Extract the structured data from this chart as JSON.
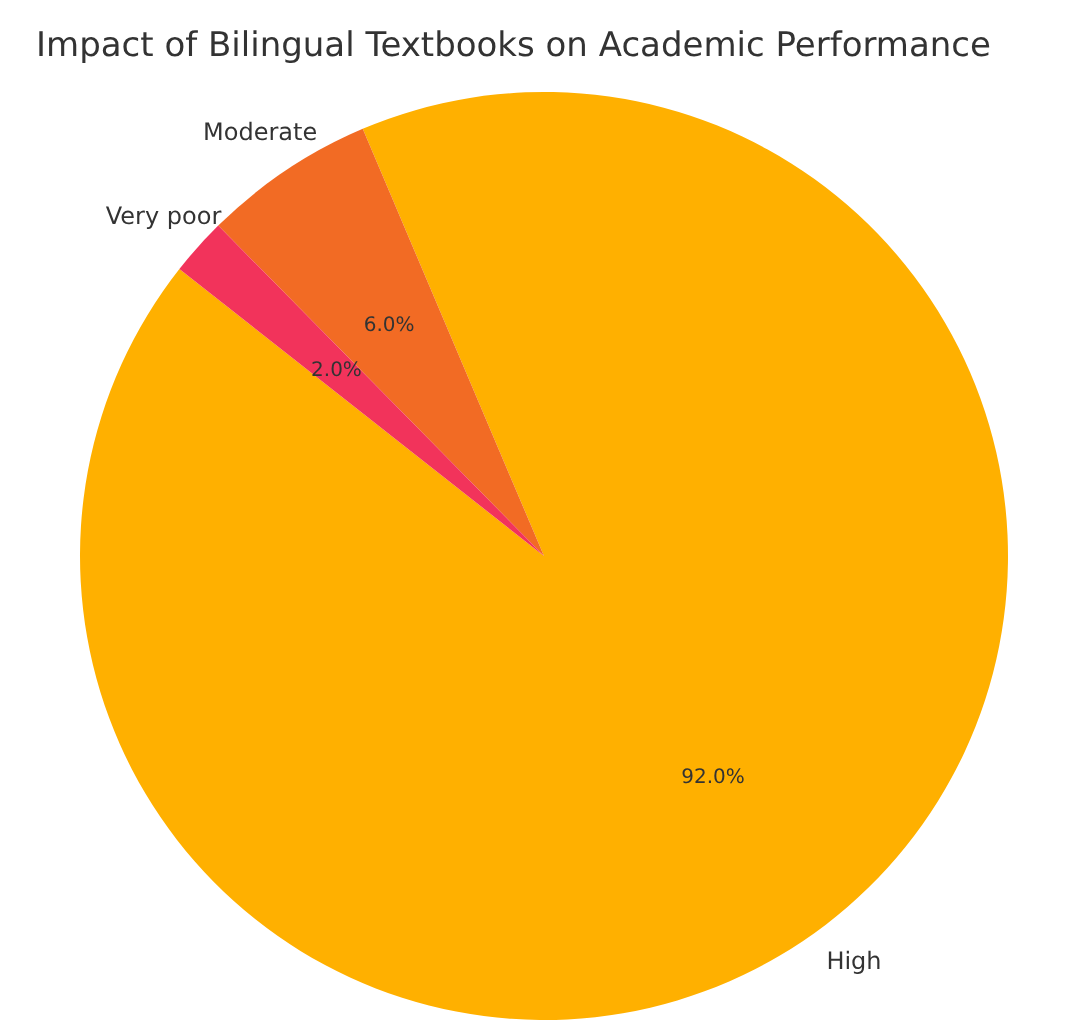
{
  "chart_data": {
    "type": "pie",
    "title": "Impact of Bilingual Textbooks on Academic Performance",
    "categories": [
      "High",
      "Moderate",
      "Very poor"
    ],
    "values": [
      92,
      6,
      2
    ],
    "colors": [
      "#ffb000",
      "#f26b24",
      "#f2335b"
    ],
    "value_labels": [
      "92.0%",
      "6.0%",
      "2.0%"
    ],
    "legend": false
  }
}
